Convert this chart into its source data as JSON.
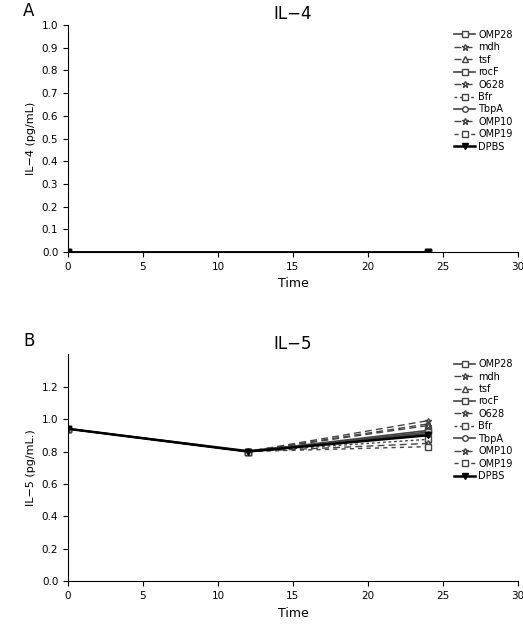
{
  "title_A": "IL−4",
  "title_B": "IL−5",
  "label_A": "A",
  "label_B": "B",
  "xlabel": "Time",
  "ylabel_A": "IL−4 (pg/mL)",
  "ylabel_B": "IL−5 (pg/mL.)",
  "x_ticks": [
    0,
    5,
    10,
    15,
    20,
    25,
    30
  ],
  "xlim": [
    0,
    30
  ],
  "ylim_A": [
    0,
    1.0
  ],
  "ylim_B": [
    0,
    1.4
  ],
  "yticks_A": [
    0,
    0.1,
    0.2,
    0.3,
    0.4,
    0.5,
    0.6,
    0.7,
    0.8,
    0.9,
    1.0
  ],
  "yticks_B": [
    0,
    0.2,
    0.4,
    0.6,
    0.8,
    1.0,
    1.2
  ],
  "time_points_B": [
    0,
    12,
    24
  ],
  "series": [
    {
      "name": "OMP28",
      "linestyle": "solid",
      "marker": "s",
      "dashes": null,
      "filled": false,
      "color": "#444444",
      "lw": 1.2
    },
    {
      "name": "mdh",
      "linestyle": "dashed",
      "marker": "*",
      "dashes": [
        5,
        3
      ],
      "filled": false,
      "color": "#444444",
      "lw": 1.0
    },
    {
      "name": "tsf",
      "linestyle": "dashed",
      "marker": "^",
      "dashes": [
        5,
        3
      ],
      "filled": false,
      "color": "#444444",
      "lw": 1.0
    },
    {
      "name": "rocF",
      "linestyle": "solid",
      "marker": "s",
      "dashes": null,
      "filled": false,
      "color": "#444444",
      "lw": 1.2
    },
    {
      "name": "O628",
      "linestyle": "dashed",
      "marker": "*",
      "dashes": [
        5,
        3
      ],
      "filled": false,
      "color": "#444444",
      "lw": 1.0
    },
    {
      "name": "Bfr",
      "linestyle": "dashed",
      "marker": "s",
      "dashes": [
        2,
        2
      ],
      "filled": false,
      "color": "#444444",
      "lw": 1.0
    },
    {
      "name": "TbpA",
      "linestyle": "solid",
      "marker": "o",
      "dashes": null,
      "filled": false,
      "color": "#444444",
      "lw": 1.2
    },
    {
      "name": "OMP10",
      "linestyle": "dashed",
      "marker": "*",
      "dashes": [
        5,
        3
      ],
      "filled": false,
      "color": "#444444",
      "lw": 1.0
    },
    {
      "name": "OMP19",
      "linestyle": "dashed",
      "marker": "s",
      "dashes": [
        3,
        3
      ],
      "filled": false,
      "color": "#444444",
      "lw": 1.0
    },
    {
      "name": "DPBS",
      "linestyle": "solid",
      "marker": "v",
      "dashes": null,
      "filled": true,
      "color": "#000000",
      "lw": 1.8
    }
  ],
  "il5_data": {
    "OMP28": [
      0.94,
      0.8,
      0.93
    ],
    "mdh": [
      0.94,
      0.8,
      0.99
    ],
    "tsf": [
      0.94,
      0.8,
      0.97
    ],
    "rocF": [
      0.94,
      0.8,
      0.92
    ],
    "O628": [
      0.94,
      0.8,
      0.96
    ],
    "Bfr": [
      0.94,
      0.8,
      0.875
    ],
    "TbpA": [
      0.94,
      0.805,
      0.91
    ],
    "OMP10": [
      0.94,
      0.8,
      0.85
    ],
    "OMP19": [
      0.94,
      0.8,
      0.83
    ],
    "DPBS": [
      0.94,
      0.8,
      0.9
    ]
  }
}
